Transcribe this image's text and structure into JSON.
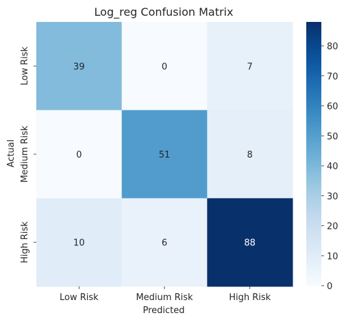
{
  "chart_data": {
    "type": "heatmap",
    "title": "Log_reg Confusion Matrix",
    "xlabel": "Predicted",
    "ylabel": "Actual",
    "x_categories": [
      "Low Risk",
      "Medium Risk",
      "High Risk"
    ],
    "y_categories": [
      "Low Risk",
      "Medium Risk",
      "High Risk"
    ],
    "values": [
      [
        39,
        0,
        7
      ],
      [
        0,
        51,
        8
      ],
      [
        10,
        6,
        88
      ]
    ],
    "colormap": "Blues",
    "vmin": 0,
    "vmax": 88,
    "colorbar_ticks": [
      0,
      10,
      20,
      30,
      40,
      50,
      60,
      70,
      80
    ],
    "annotate": true
  },
  "colors": {
    "cmap_low": "#f7fbff",
    "cmap_high": "#08306b"
  }
}
